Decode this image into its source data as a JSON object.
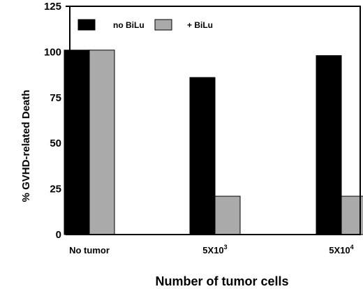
{
  "chart_data": {
    "type": "bar",
    "title": "",
    "xlabel": "Number  of  tumor  cells",
    "ylabel": "% GVHD-related Death",
    "ylim": [
      0,
      125
    ],
    "yticks": [
      0,
      25,
      50,
      75,
      100,
      125
    ],
    "categories": [
      {
        "base": "No  tumor",
        "sup": ""
      },
      {
        "base": "5X10",
        "sup": "3"
      },
      {
        "base": "5X10",
        "sup": "4"
      }
    ],
    "series": [
      {
        "name": "no BiLu",
        "color": "#000000",
        "values": [
          101,
          86,
          98
        ]
      },
      {
        "name": "+ BiLu",
        "color": "#aaaaaa",
        "values": [
          101,
          21,
          21
        ]
      }
    ],
    "legend_position": "top-left",
    "grid": false
  }
}
